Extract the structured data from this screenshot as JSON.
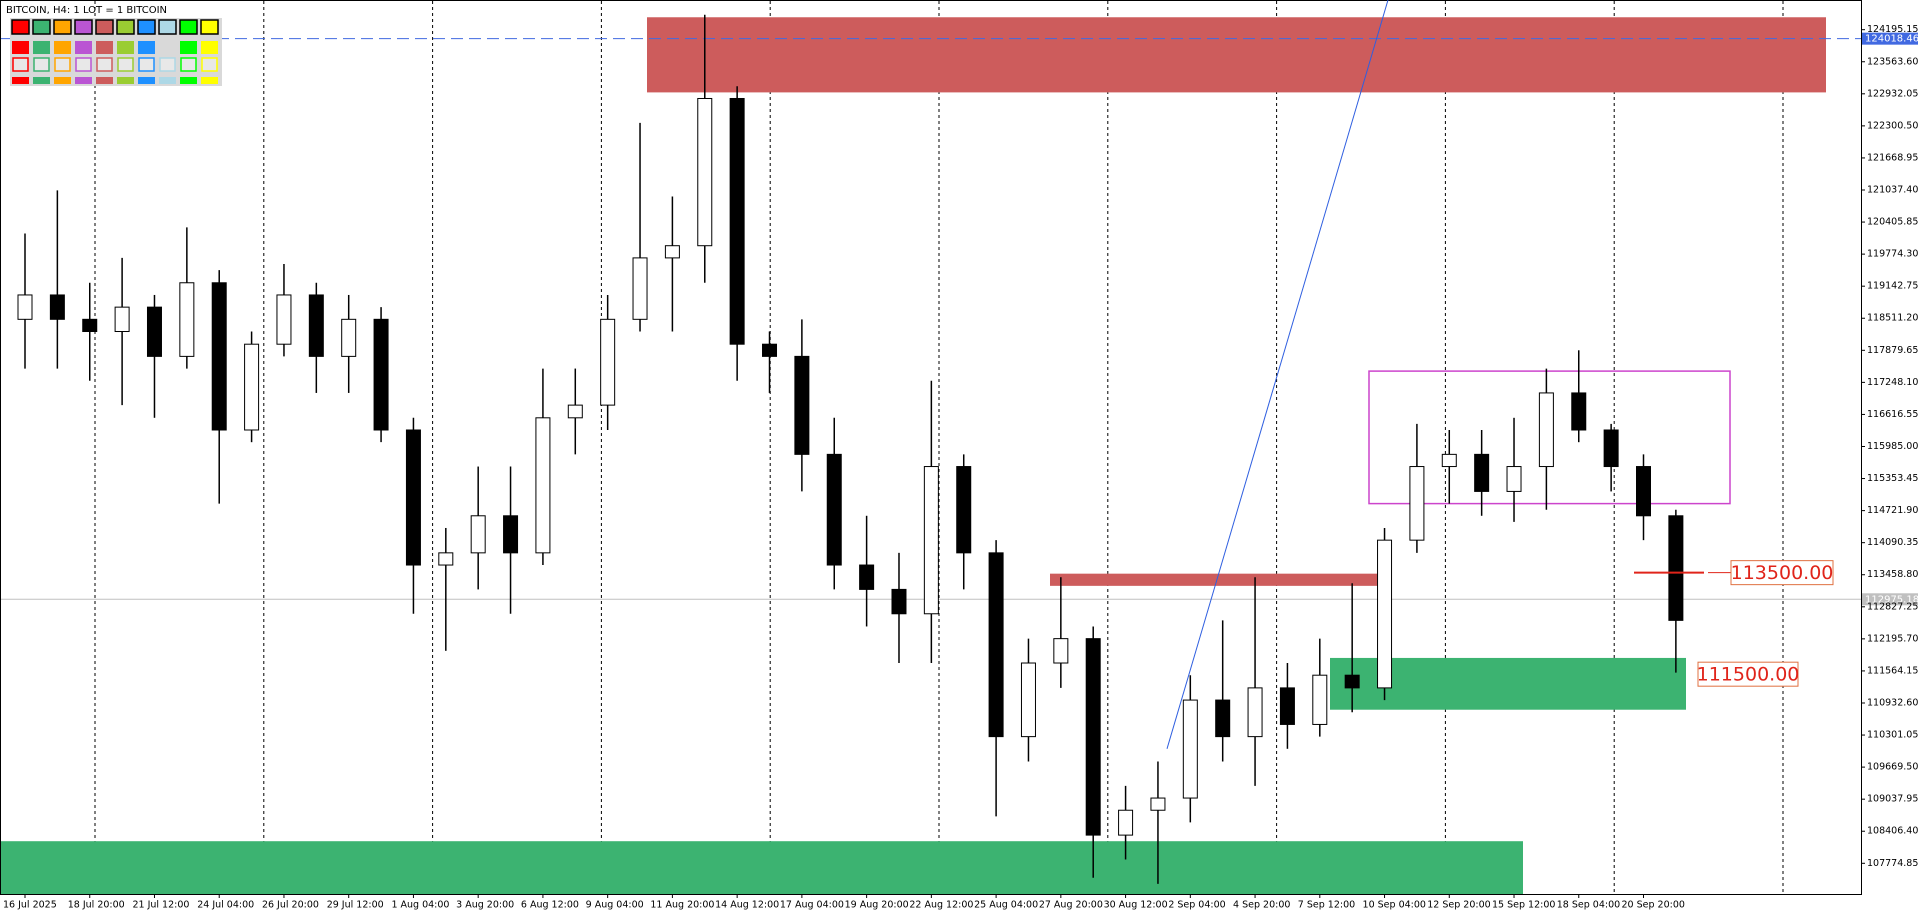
{
  "chart_data": {
    "type": "candlestick",
    "title": "BITCOIN, H4:  1 LOT = 1 BITCOIN",
    "categories": [
      "16 Jul 2025",
      null,
      "18 Jul 20:00",
      null,
      "21 Jul 12:00",
      null,
      "24 Jul 04:00",
      null,
      "26 Jul 20:00",
      null,
      "29 Jul 12:00",
      null,
      "1 Aug 04:00",
      null,
      "3 Aug 20:00",
      null,
      "6 Aug 12:00",
      null,
      "9 Aug 04:00",
      null,
      "11 Aug 20:00",
      null,
      "14 Aug 12:00",
      null,
      "17 Aug 04:00",
      null,
      "19 Aug 20:00",
      null,
      "22 Aug 12:00",
      null,
      "25 Aug 04:00",
      null,
      "27 Aug 20:00",
      null,
      "30 Aug 12:00",
      null,
      "2 Sep 04:00",
      null,
      "4 Sep 20:00",
      null,
      "7 Sep 12:00",
      null,
      "10 Sep 04:00",
      null,
      "12 Sep 20:00",
      null,
      "15 Sep 12:00",
      null,
      "18 Sep 04:00",
      null,
      "20 Sep 20:00",
      null
    ],
    "open": [
      118490,
      118970,
      118490,
      118250,
      118730,
      117760,
      119210,
      116310,
      118000,
      118970,
      117760,
      118490,
      116310,
      113650,
      113890,
      114620,
      113890,
      116550,
      116800,
      118490,
      119700,
      119940,
      122840,
      118000,
      117760,
      115830,
      113650,
      113170,
      112690,
      115590,
      113890,
      110270,
      111720,
      112200,
      108330,
      108820,
      109060,
      110990,
      110270,
      111230,
      110510,
      111480,
      111230,
      114140,
      115590,
      115830,
      115100,
      115590,
      117040,
      116310,
      115590,
      114620
    ],
    "high": [
      120180,
      121030,
      119210,
      119700,
      118970,
      120300,
      119460,
      118250,
      119580,
      119210,
      118970,
      118730,
      116550,
      114380,
      115590,
      115590,
      117520,
      117520,
      118970,
      122360,
      120910,
      124490,
      123080,
      118250,
      118490,
      116550,
      114620,
      113890,
      117280,
      115830,
      114140,
      112200,
      113410,
      112440,
      109300,
      109780,
      111480,
      112560,
      113410,
      111720,
      112200,
      113290,
      114380,
      116430,
      116310,
      116310,
      116550,
      117520,
      117880,
      116430,
      115830,
      114740
    ],
    "low": [
      117520,
      117520,
      117280,
      116800,
      116550,
      117520,
      114860,
      116070,
      117760,
      117040,
      117040,
      116070,
      112690,
      111960,
      113170,
      112690,
      113650,
      115830,
      116310,
      118250,
      118250,
      119210,
      117280,
      117040,
      115100,
      113170,
      112440,
      111720,
      111720,
      113170,
      108700,
      109780,
      111230,
      107490,
      107850,
      107370,
      108580,
      109780,
      109300,
      110030,
      110270,
      110750,
      110990,
      113890,
      114860,
      114620,
      114500,
      114740,
      116070,
      115100,
      114140,
      111530
    ],
    "close": [
      118970,
      118490,
      118250,
      118730,
      117760,
      119210,
      116310,
      118000,
      118970,
      117760,
      118490,
      116310,
      113650,
      113890,
      114620,
      113890,
      116550,
      116800,
      118490,
      119700,
      119940,
      122840,
      118000,
      117760,
      115830,
      113650,
      113170,
      112690,
      115590,
      113890,
      110270,
      111720,
      112200,
      108330,
      108820,
      109060,
      110990,
      110270,
      111230,
      110510,
      111480,
      111230,
      114140,
      115590,
      115830,
      115100,
      115590,
      117040,
      116310,
      115590,
      114620,
      112560
    ],
    "up_color": "#ffffff",
    "down_color": "#000000",
    "ylim": [
      107170,
      124780
    ],
    "yticks": [
      124195.15,
      {
        "value": 123563.6,
        "label": "123563.60"
      },
      122932.05,
      {
        "value": 122300.5,
        "label": "122300.50"
      },
      121668.95,
      {
        "value": 121037.4,
        "label": "121037.40"
      },
      120405.85,
      {
        "value": 119774.3,
        "label": "119774.30"
      },
      119142.75,
      {
        "value": 118511.2,
        "label": "118511.20"
      },
      117879.65,
      {
        "value": 117248.1,
        "label": "117248.10"
      },
      116616.55,
      {
        "value": 115985,
        "label": "115985.00"
      },
      115353.45,
      {
        "value": 114721.9,
        "label": "114721.90"
      },
      114090.35,
      {
        "value": 113458.8,
        "label": "113458.80"
      },
      112827.25,
      {
        "value": 112195.7,
        "label": "112195.70"
      },
      111564.15,
      {
        "value": 110932.6,
        "label": "110932.60"
      },
      110301.05,
      {
        "value": 109669.5,
        "label": "109669.50"
      },
      109037.95,
      {
        "value": 108406.4,
        "label": "108406.40"
      },
      107774.85
    ],
    "grid": false,
    "zones": [
      {
        "top": 124440,
        "bottom": 122960,
        "color": "#cd5c5c"
      },
      {
        "top": 113480,
        "bottom": 113240,
        "color": "#cd5c5c"
      },
      {
        "top": 111820,
        "bottom": 110800,
        "color": "#3cb371"
      },
      {
        "top": 108210,
        "bottom": 107170,
        "color": "#3cb371"
      }
    ],
    "box": {
      "top": 117470,
      "bottom": 114860,
      "color": "#cc44cc"
    },
    "trendline": {
      "start": 110030,
      "end": 124780,
      "color": "#2f5fe0"
    },
    "levels": [
      {
        "value": 113500,
        "label": "113500.00",
        "color": "#e0241a"
      },
      {
        "value": 111500,
        "label": "111500.00",
        "color": "#e0241a"
      }
    ],
    "bid_line": {
      "value": 112975.18,
      "color": "#c0c0c0"
    },
    "alert_line": {
      "value": 124018.46,
      "color": "#4169e1"
    }
  }
}
